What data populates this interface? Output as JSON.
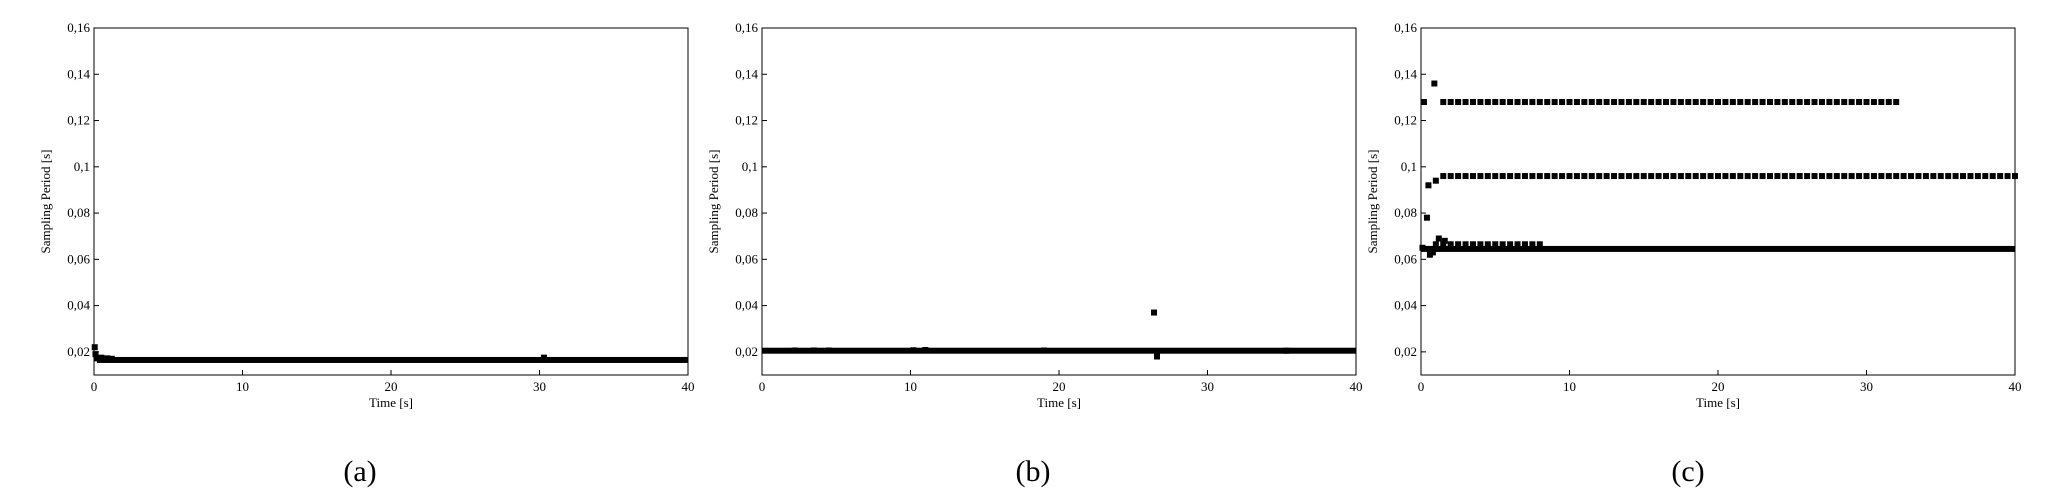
{
  "chart_data": [
    {
      "type": "scatter",
      "caption": "(a)",
      "xlabel": "Time [s]",
      "ylabel": "Sampling Period [s]",
      "xlim": [
        0,
        40
      ],
      "ylim": [
        0.01,
        0.16
      ],
      "xticks": [
        "0",
        "10",
        "20",
        "30",
        "40"
      ],
      "yticks": [
        "0,02",
        "0,04",
        "0,06",
        "0,08",
        "0,1",
        "0,12",
        "0,14",
        "0,16"
      ],
      "series": [
        {
          "bands": [
            {
              "x_start": 0.2,
              "x_end": 40,
              "y": 0.0165
            }
          ],
          "points": [
            [
              0.05,
              0.022
            ],
            [
              0.1,
              0.019
            ],
            [
              0.2,
              0.0172
            ],
            [
              0.5,
              0.0175
            ],
            [
              0.9,
              0.0172
            ],
            [
              1.2,
              0.017
            ],
            [
              30.3,
              0.0175
            ]
          ]
        }
      ]
    },
    {
      "type": "scatter",
      "caption": "(b)",
      "xlabel": "Time [s]",
      "ylabel": "Sampling Period [s]",
      "xlim": [
        0,
        40
      ],
      "ylim": [
        0.01,
        0.16
      ],
      "xticks": [
        "0",
        "10",
        "20",
        "30",
        "40"
      ],
      "yticks": [
        "0,02",
        "0,04",
        "0,06",
        "0,08",
        "0,1",
        "0,12",
        "0,14",
        "0,16"
      ],
      "series": [
        {
          "bands": [
            {
              "x_start": 0,
              "x_end": 40,
              "y": 0.0205
            }
          ],
          "points": [
            [
              2.2,
              0.0206
            ],
            [
              3.5,
              0.0206
            ],
            [
              4.5,
              0.0206
            ],
            [
              10.2,
              0.0207
            ],
            [
              11.0,
              0.0208
            ],
            [
              19.0,
              0.0206
            ],
            [
              26.4,
              0.037
            ],
            [
              26.6,
              0.018
            ],
            [
              35.3,
              0.0205
            ]
          ]
        }
      ]
    },
    {
      "type": "scatter",
      "caption": "(c)",
      "xlabel": "Time [s]",
      "ylabel": "Sampling Period [s]",
      "xlim": [
        0,
        40
      ],
      "ylim": [
        0.01,
        0.16
      ],
      "xticks": [
        "0",
        "10",
        "20",
        "30",
        "40"
      ],
      "yticks": [
        "0,02",
        "0,04",
        "0,06",
        "0,08",
        "0,1",
        "0,12",
        "0,14",
        "0,16"
      ],
      "series": [
        {
          "dotted_runs": [
            {
              "x_start": 1.5,
              "x_end": 32,
              "y": 0.128,
              "step": 0.5
            },
            {
              "x_start": 1.5,
              "x_end": 40,
              "y": 0.096,
              "step": 0.5
            },
            {
              "x_start": 1.0,
              "x_end": 8,
              "y": 0.0665,
              "step": 0.5
            }
          ],
          "bands": [
            {
              "x_start": 0,
              "x_end": 40,
              "y": 0.0645
            }
          ],
          "points": [
            [
              0.2,
              0.128
            ],
            [
              0.9,
              0.136
            ],
            [
              0.4,
              0.078
            ],
            [
              0.5,
              0.092
            ],
            [
              1.0,
              0.094
            ],
            [
              0.6,
              0.062
            ],
            [
              0.8,
              0.063
            ],
            [
              1.2,
              0.069
            ],
            [
              1.6,
              0.068
            ],
            [
              0.1,
              0.065
            ]
          ]
        }
      ]
    }
  ]
}
